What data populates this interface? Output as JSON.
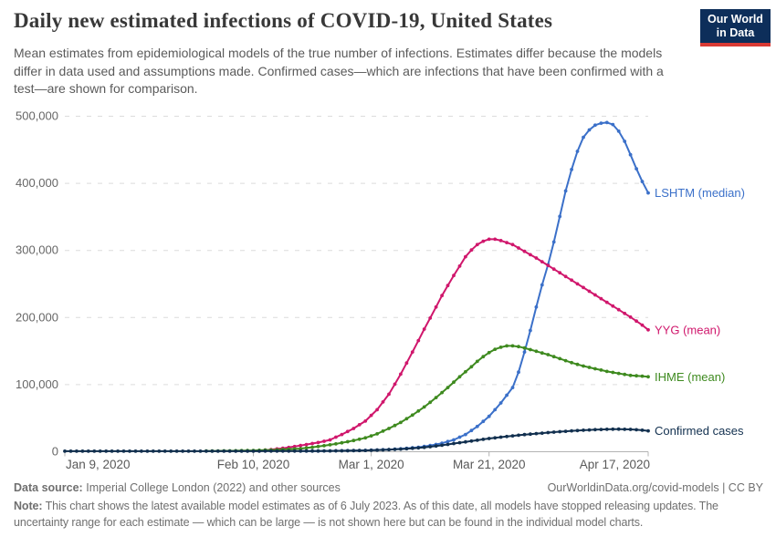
{
  "header": {
    "title": "Daily new estimated infections of COVID-19, United States",
    "subtitle": "Mean estimates from epidemiological models of the true number of infections. Estimates differ because the models differ in data used and assumptions made. Confirmed cases—which are infections that have been confirmed with a test—are shown for comparison.",
    "logo": {
      "line1": "Our World",
      "line2": "in Data",
      "bg_color": "#0d2e5a",
      "accent_color": "#d93a34"
    }
  },
  "footer": {
    "data_source_label": "Data source:",
    "data_source_text": "Imperial College London (2022) and other sources",
    "attribution": "OurWorldinData.org/covid-models | CC BY",
    "note_label": "Note:",
    "note_text": "This chart shows the latest available model estimates as of 6 July 2023. As of this date, all models have stopped releasing updates. The uncertainty range for each estimate — which can be large — is not shown here but can be found in the individual model charts."
  },
  "chart_data": {
    "type": "line",
    "title": "Daily new estimated infections of COVID-19, United States",
    "ylabel": "Daily new estimated infections",
    "grid": "dashed horizontal",
    "legend_position": "right-end-labels",
    "x_axis": {
      "unit": "date",
      "domain_days": [
        0,
        99
      ],
      "start_date": "Jan 9, 2020",
      "end_date": "Apr 17, 2020",
      "ticks": [
        {
          "label": "Jan 9, 2020",
          "day": 0,
          "align": "start"
        },
        {
          "label": "Feb 10, 2020",
          "day": 32,
          "align": "middle"
        },
        {
          "label": "Mar 1, 2020",
          "day": 52,
          "align": "middle"
        },
        {
          "label": "Mar 21, 2020",
          "day": 72,
          "align": "middle"
        },
        {
          "label": "Apr 17, 2020",
          "day": 99,
          "align": "end"
        }
      ]
    },
    "y_axis": {
      "ylim": [
        0,
        500000
      ],
      "ticks": [
        {
          "label": "0",
          "value": 0
        },
        {
          "label": "100,000",
          "value": 100000
        },
        {
          "label": "200,000",
          "value": 200000
        },
        {
          "label": "300,000",
          "value": 300000
        },
        {
          "label": "400,000",
          "value": 400000
        },
        {
          "label": "500,000",
          "value": 500000
        }
      ]
    },
    "series": [
      {
        "id": "lshtm",
        "name": "LSHTM (median)",
        "color": "#3b70c9",
        "label_value": 385000,
        "points": [
          [
            40,
            300
          ],
          [
            44,
            500
          ],
          [
            48,
            900
          ],
          [
            52,
            1600
          ],
          [
            55,
            2600
          ],
          [
            58,
            4300
          ],
          [
            60,
            6000
          ],
          [
            62,
            8500
          ],
          [
            64,
            12000
          ],
          [
            66,
            17000
          ],
          [
            68,
            25000
          ],
          [
            70,
            37000
          ],
          [
            72,
            52000
          ],
          [
            74,
            72000
          ],
          [
            76,
            95000
          ],
          [
            77,
            118000
          ],
          [
            78,
            148000
          ],
          [
            79,
            180000
          ],
          [
            80,
            215000
          ],
          [
            81,
            248000
          ],
          [
            82,
            278000
          ],
          [
            83,
            312000
          ],
          [
            84,
            350000
          ],
          [
            85,
            388000
          ],
          [
            86,
            420000
          ],
          [
            87,
            447000
          ],
          [
            88,
            468000
          ],
          [
            89,
            479000
          ],
          [
            90,
            486000
          ],
          [
            91,
            489000
          ],
          [
            92,
            490000
          ],
          [
            93,
            487000
          ],
          [
            94,
            477000
          ],
          [
            95,
            462000
          ],
          [
            96,
            442000
          ],
          [
            97,
            421000
          ],
          [
            98,
            402000
          ],
          [
            99,
            385000
          ]
        ]
      },
      {
        "id": "yyg",
        "name": "YYG (mean)",
        "color": "#d0176c",
        "label_value": 181000,
        "points": [
          [
            33,
            1000
          ],
          [
            35,
            2500
          ],
          [
            37,
            4500
          ],
          [
            39,
            7000
          ],
          [
            41,
            10000
          ],
          [
            43,
            13000
          ],
          [
            45,
            17000
          ],
          [
            47,
            25000
          ],
          [
            49,
            34000
          ],
          [
            51,
            45000
          ],
          [
            53,
            62000
          ],
          [
            55,
            85000
          ],
          [
            57,
            115000
          ],
          [
            59,
            148000
          ],
          [
            61,
            182000
          ],
          [
            63,
            215000
          ],
          [
            64,
            232000
          ],
          [
            65,
            247000
          ],
          [
            66,
            262000
          ],
          [
            67,
            276000
          ],
          [
            68,
            290000
          ],
          [
            69,
            300000
          ],
          [
            70,
            308000
          ],
          [
            71,
            313000
          ],
          [
            72,
            316000
          ],
          [
            73,
            316000
          ],
          [
            74,
            314000
          ],
          [
            76,
            308000
          ],
          [
            78,
            298000
          ],
          [
            80,
            288000
          ],
          [
            82,
            277000
          ],
          [
            84,
            266000
          ],
          [
            86,
            255000
          ],
          [
            88,
            244000
          ],
          [
            90,
            233000
          ],
          [
            92,
            222000
          ],
          [
            94,
            211000
          ],
          [
            96,
            200000
          ],
          [
            98,
            188000
          ],
          [
            99,
            181000
          ]
        ]
      },
      {
        "id": "ihme",
        "name": "IHME (mean)",
        "color": "#3e8a1f",
        "label_value": 111000,
        "points": [
          [
            24,
            400
          ],
          [
            28,
            700
          ],
          [
            32,
            1200
          ],
          [
            36,
            2200
          ],
          [
            40,
            4000
          ],
          [
            43,
            7000
          ],
          [
            46,
            11000
          ],
          [
            49,
            16000
          ],
          [
            51,
            20000
          ],
          [
            53,
            26000
          ],
          [
            55,
            34000
          ],
          [
            57,
            43000
          ],
          [
            59,
            54000
          ],
          [
            61,
            66000
          ],
          [
            63,
            80000
          ],
          [
            65,
            95000
          ],
          [
            67,
            111000
          ],
          [
            69,
            126000
          ],
          [
            70,
            134000
          ],
          [
            71,
            141000
          ],
          [
            72,
            147000
          ],
          [
            73,
            152000
          ],
          [
            74,
            155000
          ],
          [
            75,
            157000
          ],
          [
            76,
            157000
          ],
          [
            77,
            156000
          ],
          [
            78,
            154000
          ],
          [
            80,
            149000
          ],
          [
            82,
            144000
          ],
          [
            84,
            138000
          ],
          [
            86,
            132000
          ],
          [
            88,
            127000
          ],
          [
            90,
            123000
          ],
          [
            92,
            119000
          ],
          [
            94,
            116000
          ],
          [
            96,
            113000
          ],
          [
            98,
            112000
          ],
          [
            99,
            111000
          ]
        ]
      },
      {
        "id": "confirmed",
        "name": "Confirmed cases",
        "color": "#12304f",
        "label_value": 30500,
        "points": [
          [
            0,
            100
          ],
          [
            6,
            100
          ],
          [
            12,
            100
          ],
          [
            18,
            100
          ],
          [
            24,
            120
          ],
          [
            30,
            150
          ],
          [
            36,
            250
          ],
          [
            40,
            350
          ],
          [
            44,
            500
          ],
          [
            48,
            800
          ],
          [
            51,
            1200
          ],
          [
            54,
            2000
          ],
          [
            57,
            3300
          ],
          [
            60,
            5000
          ],
          [
            62,
            6800
          ],
          [
            64,
            9000
          ],
          [
            66,
            11500
          ],
          [
            68,
            14000
          ],
          [
            70,
            16500
          ],
          [
            72,
            19000
          ],
          [
            74,
            21000
          ],
          [
            76,
            23000
          ],
          [
            78,
            24800
          ],
          [
            80,
            26400
          ],
          [
            82,
            27800
          ],
          [
            84,
            29200
          ],
          [
            86,
            30400
          ],
          [
            88,
            31400
          ],
          [
            90,
            32200
          ],
          [
            92,
            32800
          ],
          [
            94,
            33000
          ],
          [
            96,
            32600
          ],
          [
            98,
            31400
          ],
          [
            99,
            30500
          ]
        ]
      }
    ]
  }
}
